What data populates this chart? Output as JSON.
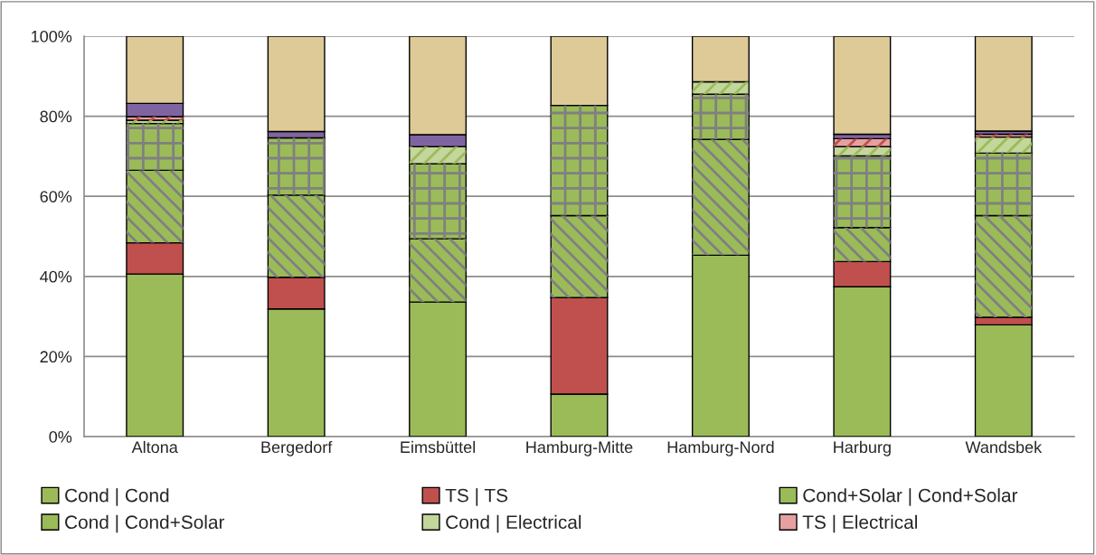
{
  "chart_data": {
    "type": "bar",
    "stacked": true,
    "categories": [
      "Altona",
      "Bergedorf",
      "Eimsbüttel",
      "Hamburg-Mitte",
      "Hamburg-Nord",
      "Harburg",
      "Wandsbek"
    ],
    "series": [
      {
        "name": "Cond | Cond",
        "color": "#9bbb59",
        "values": [
          40.6,
          31.9,
          33.6,
          10.6,
          45.3,
          37.4,
          27.9
        ]
      },
      {
        "name": "TS | TS",
        "color": "#c0504d",
        "values": [
          7.8,
          7.9,
          null,
          24.1,
          null,
          6.3,
          1.9
        ]
      },
      {
        "name": "Cond+Solar | Cond+Solar",
        "color": "#9bbb59",
        "values": [
          18.1,
          20.5,
          15.8,
          20.5,
          28.9,
          8.5,
          25.4
        ]
      },
      {
        "name": "Cond | Cond+Solar",
        "color": "#9bbb59",
        "values": [
          11.7,
          14.3,
          18.7,
          27.5,
          11.3,
          17.9,
          15.6
        ]
      },
      {
        "name": "Cond | Electrical",
        "color": "#c3d69b",
        "values": [
          0.8,
          null,
          4.3,
          null,
          3.1,
          2.3,
          4.0
        ]
      },
      {
        "name": "TS | Electrical",
        "color": "#e6a0a0",
        "values": [
          0.9,
          null,
          null,
          null,
          null,
          2.0,
          0.7
        ]
      },
      {
        "color": "#8064a2",
        "values": [
          3.3,
          1.6,
          3.0,
          null,
          null,
          1.1,
          0.8
        ]
      },
      {
        "color": "#ddca96",
        "values": [
          16.8,
          23.8,
          24.6,
          17.3,
          11.4,
          24.5,
          23.7
        ]
      }
    ],
    "ylim": [
      0,
      100
    ],
    "yticks": [
      {
        "value": 0,
        "label": "0%"
      },
      {
        "value": 20,
        "label": "20%"
      },
      {
        "value": 40,
        "label": "40%"
      },
      {
        "value": 60,
        "label": "60%"
      },
      {
        "value": 80,
        "label": "80%"
      },
      {
        "value": 100,
        "label": "100%"
      }
    ],
    "grid": "y",
    "legend": "bottom"
  }
}
